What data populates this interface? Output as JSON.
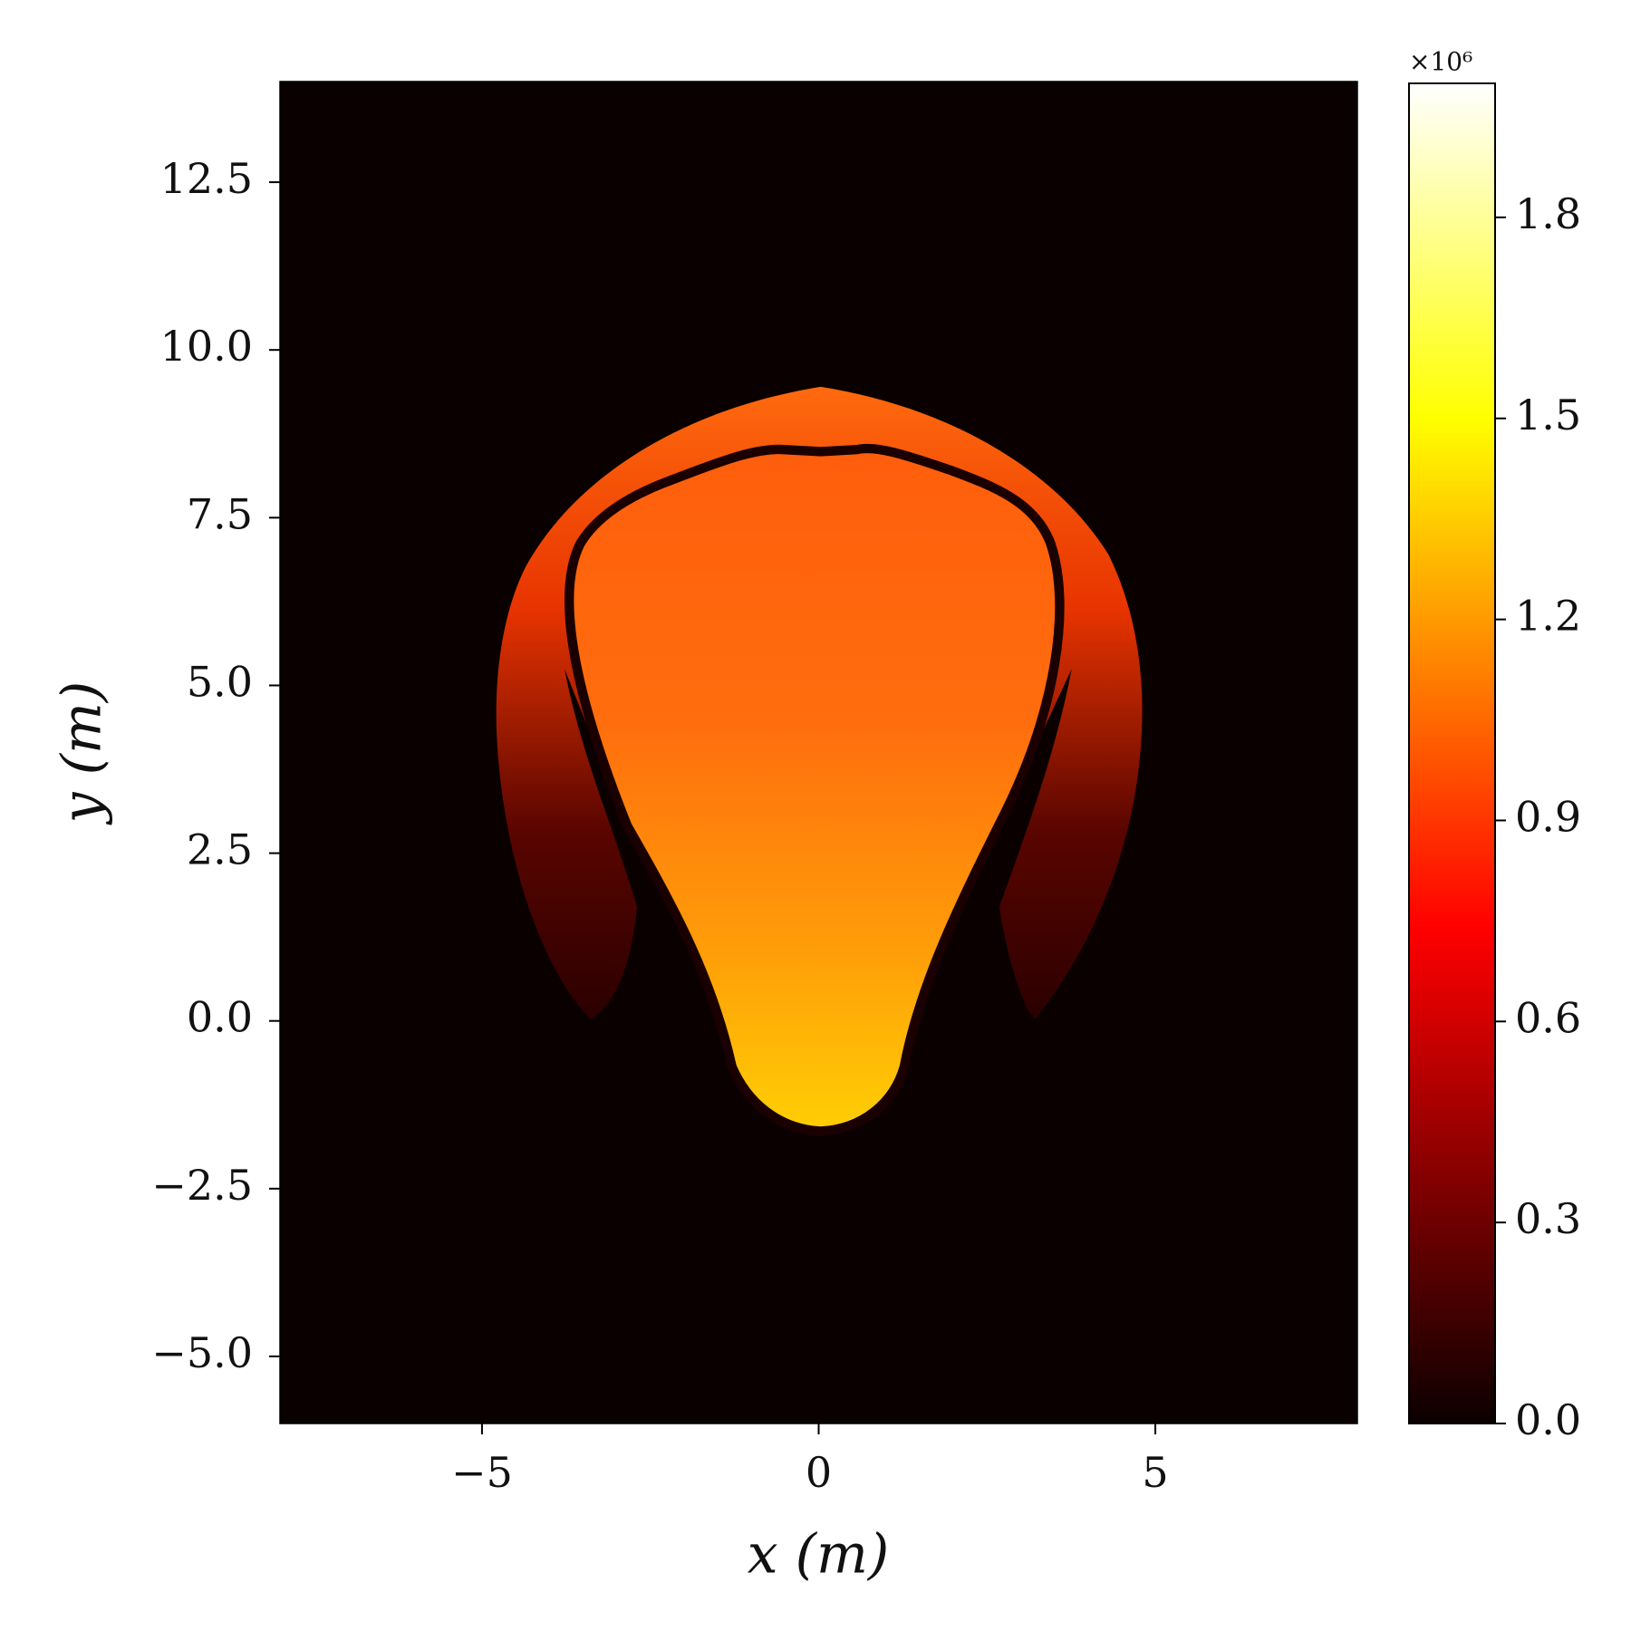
{
  "chart_data": {
    "type": "heatmap",
    "xlabel": "x (m)",
    "ylabel": "y (m)",
    "xlim": [
      -8,
      8
    ],
    "ylim": [
      -6,
      14
    ],
    "xticks": [
      {
        "value": -5,
        "label": "−5"
      },
      0,
      5
    ],
    "yticks": [
      {
        "value": -5,
        "label": "−5.0"
      },
      {
        "value": -2.5,
        "label": "−2.5"
      },
      {
        "value": 0,
        "label": "0.0"
      },
      2.5,
      {
        "value": 5,
        "label": "5.0"
      },
      7.5,
      {
        "value": 10,
        "label": "10.0"
      },
      12.5
    ],
    "colormap": "hot",
    "clim": [
      0,
      2.0
    ],
    "cticks": [
      {
        "value": 0,
        "label": "0.0"
      },
      0.3,
      0.6,
      0.9,
      1.2,
      1.5,
      1.8
    ],
    "colorbar_offset": "×10⁶"
  }
}
